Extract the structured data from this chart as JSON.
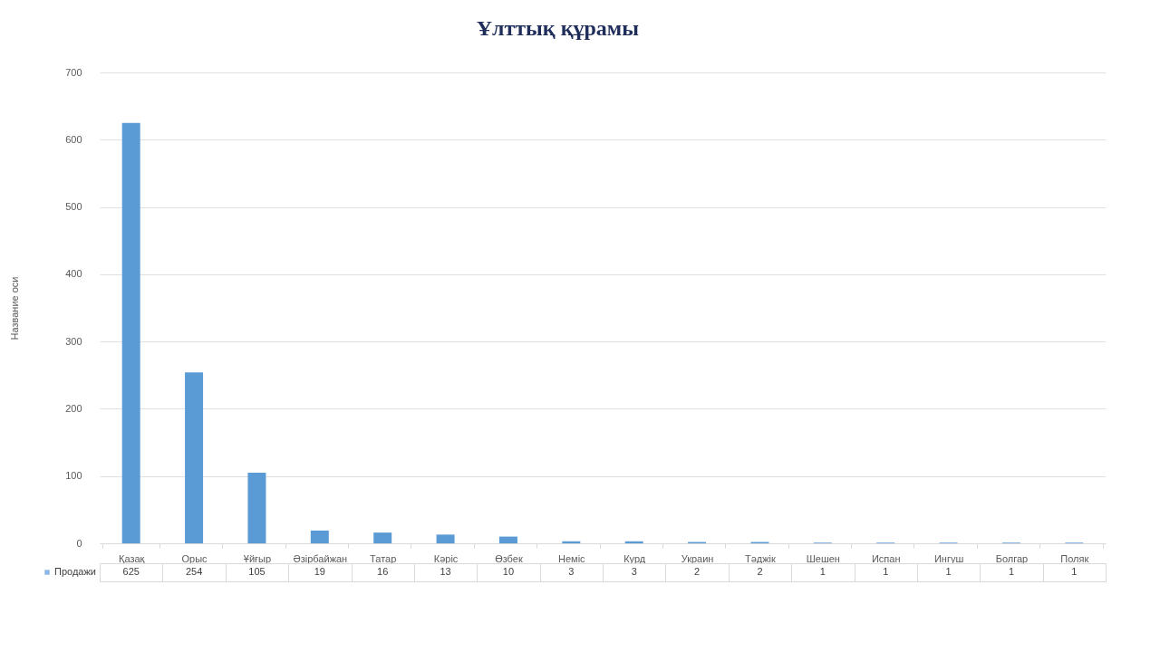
{
  "chart_data": {
    "type": "bar",
    "title": "Ұлттық құрамы",
    "ylabel": "Название оси",
    "categories": [
      "Қазақ",
      "Орыс",
      "Ұйғыр",
      "Әзірбайжан",
      "Татар",
      "Кәріс",
      "Өзбек",
      "Неміс",
      "Курд",
      "Украин",
      "Тәджік",
      "Шешен",
      "Испан",
      "Ингуш",
      "Болгар",
      "Поляк"
    ],
    "series": [
      {
        "name": "Продажи",
        "color": "#5b9bd5",
        "values": [
          625,
          254,
          105,
          19,
          16,
          13,
          10,
          3,
          3,
          2,
          2,
          1,
          1,
          1,
          1,
          1
        ]
      }
    ],
    "ylim": [
      0,
      700
    ],
    "yticks": [
      0,
      100,
      200,
      300,
      400,
      500,
      600,
      700
    ],
    "grid": "y",
    "data_labels": true,
    "legend": "bottom left"
  }
}
